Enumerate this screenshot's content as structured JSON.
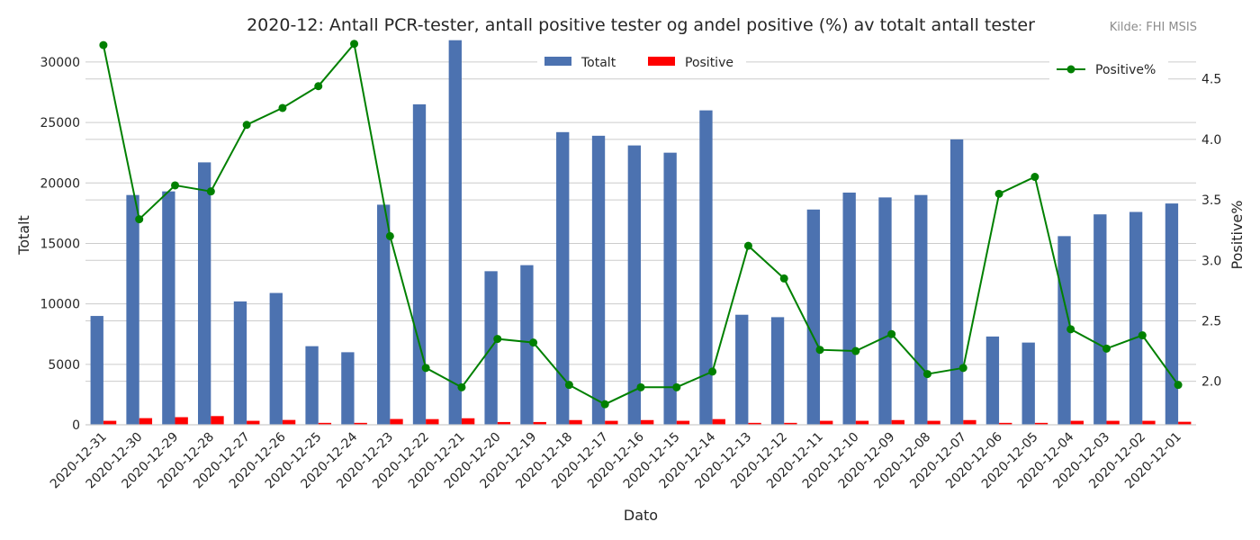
{
  "chart_data": {
    "type": "bar",
    "title": "2020-12: Antall PCR-tester, antall positive tester og andel positive (%) av totalt antall tester",
    "source": "Kilde: FHI MSIS",
    "xlabel": "Dato",
    "ylabel": "Totalt",
    "y2label": "Positive%",
    "ylim": [
      0,
      32000
    ],
    "y2lim": [
      1.64,
      4.84
    ],
    "yticks": [
      0,
      5000,
      10000,
      15000,
      20000,
      25000,
      30000
    ],
    "y2ticks": [
      2.0,
      2.5,
      3.0,
      3.5,
      4.0,
      4.5
    ],
    "categories": [
      "2020-12-31",
      "2020-12-30",
      "2020-12-29",
      "2020-12-28",
      "2020-12-27",
      "2020-12-26",
      "2020-12-25",
      "2020-12-24",
      "2020-12-23",
      "2020-12-22",
      "2020-12-21",
      "2020-12-20",
      "2020-12-19",
      "2020-12-18",
      "2020-12-17",
      "2020-12-16",
      "2020-12-15",
      "2020-12-14",
      "2020-12-13",
      "2020-12-12",
      "2020-12-11",
      "2020-12-10",
      "2020-12-09",
      "2020-12-08",
      "2020-12-07",
      "2020-12-06",
      "2020-12-05",
      "2020-12-04",
      "2020-12-03",
      "2020-12-02",
      "2020-12-01"
    ],
    "series": [
      {
        "name": "Totalt",
        "kind": "bar",
        "axis": "left",
        "color": "#4c72b0",
        "values": [
          9000,
          19000,
          19300,
          21700,
          10200,
          10900,
          6500,
          6000,
          18200,
          26500,
          31800,
          12700,
          13200,
          24200,
          23900,
          23100,
          22500,
          26000,
          9100,
          8900,
          17800,
          19200,
          18800,
          19000,
          23600,
          7300,
          6800,
          15600,
          17400,
          17600,
          18300
        ]
      },
      {
        "name": "Positive",
        "kind": "bar",
        "axis": "left",
        "color": "#ff0000",
        "values": [
          330,
          550,
          630,
          720,
          330,
          400,
          160,
          160,
          480,
          470,
          540,
          230,
          230,
          390,
          330,
          390,
          330,
          470,
          160,
          160,
          330,
          330,
          390,
          330,
          390,
          160,
          160,
          330,
          330,
          330,
          250
        ]
      },
      {
        "name": "Positive%",
        "kind": "line",
        "axis": "right",
        "color": "#008000",
        "values": [
          4.78,
          3.34,
          3.62,
          3.57,
          4.12,
          4.26,
          4.44,
          4.79,
          3.2,
          2.11,
          1.95,
          2.35,
          2.32,
          1.97,
          1.81,
          1.95,
          1.95,
          2.08,
          3.12,
          2.85,
          2.26,
          2.25,
          2.39,
          2.06,
          2.11,
          3.55,
          3.69,
          2.43,
          2.27,
          2.38,
          1.97
        ]
      }
    ],
    "legend": {
      "bars": "top-center",
      "line": "top-right"
    },
    "grid": true
  }
}
